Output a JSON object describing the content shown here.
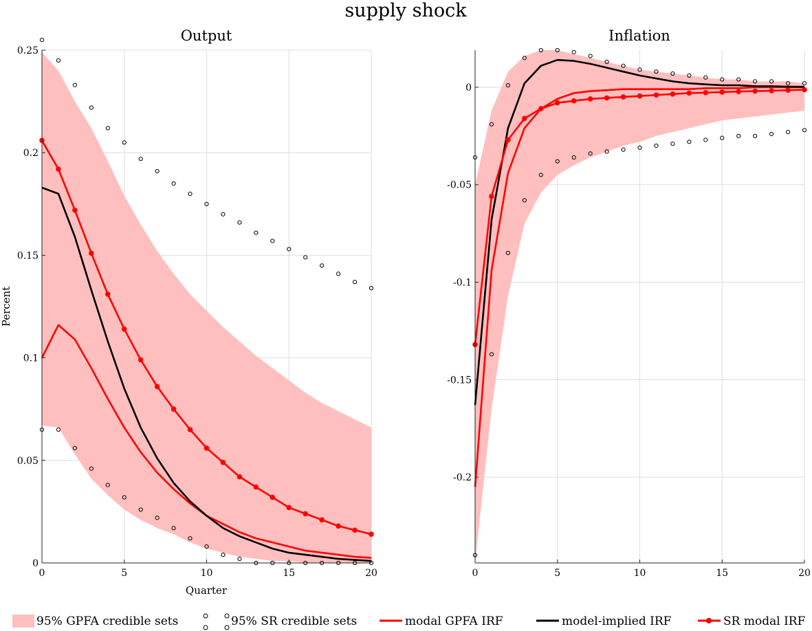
{
  "figure": {
    "title": "supply shock",
    "legend": [
      {
        "key": "band",
        "label": "95% GPFA credible sets"
      },
      {
        "key": "sr_sets",
        "label": "95% SR credible sets"
      },
      {
        "key": "modal_gpfa",
        "label": "modal GPFA IRF"
      },
      {
        "key": "model_implied",
        "label": "model-implied IRF"
      },
      {
        "key": "sr_modal",
        "label": "SR modal IRF"
      }
    ],
    "colors": {
      "band": "#ffbfbf",
      "red": "#ff0000",
      "black": "#000000",
      "grid": "#dedede"
    }
  },
  "chart_data": [
    {
      "type": "line",
      "title": "Output",
      "xlabel": "Quarter",
      "ylabel": "Percent",
      "xlim": [
        0,
        20
      ],
      "ylim": [
        0,
        0.25
      ],
      "xticks": [
        0,
        5,
        10,
        15,
        20
      ],
      "xtick_labels": [
        "0",
        "5",
        "10",
        "15",
        "20"
      ],
      "yticks": [
        0,
        0.05,
        0.1,
        0.15,
        0.2,
        0.25
      ],
      "ytick_labels": [
        "0",
        "0.05",
        "0.1",
        "0.15",
        "0.2",
        "0.25"
      ],
      "grid": true,
      "x": [
        0,
        1,
        2,
        3,
        4,
        5,
        6,
        7,
        8,
        9,
        10,
        11,
        12,
        13,
        14,
        15,
        16,
        17,
        18,
        19,
        20
      ],
      "series": [
        {
          "key": "band",
          "type": "area",
          "upper": [
            0.249,
            0.24,
            0.225,
            0.212,
            0.196,
            0.179,
            0.165,
            0.152,
            0.141,
            0.131,
            0.123,
            0.115,
            0.108,
            0.101,
            0.095,
            0.089,
            0.083,
            0.078,
            0.074,
            0.07,
            0.066
          ],
          "lower": [
            0.067,
            0.066,
            0.053,
            0.041,
            0.033,
            0.026,
            0.021,
            0.017,
            0.014,
            0.01,
            0.007,
            0.005,
            0.003,
            0.002,
            0.001,
            0.001,
            0.0,
            0.0,
            0.0,
            0.0,
            0.0
          ]
        },
        {
          "key": "sr_sets_upper",
          "type": "scatter",
          "values": [
            0.255,
            0.245,
            0.233,
            0.222,
            0.212,
            0.205,
            0.197,
            0.191,
            0.185,
            0.18,
            0.175,
            0.17,
            0.166,
            0.161,
            0.157,
            0.153,
            0.149,
            0.145,
            0.141,
            0.137,
            0.134
          ]
        },
        {
          "key": "sr_sets_lower",
          "type": "scatter",
          "values": [
            0.065,
            0.065,
            0.056,
            0.046,
            0.038,
            0.032,
            0.026,
            0.022,
            0.017,
            0.012,
            0.008,
            0.004,
            0.002,
            0.0,
            0.0,
            0.0,
            0.0,
            0.0,
            0.0,
            0.0,
            0.0
          ]
        },
        {
          "key": "modal_gpfa",
          "type": "line",
          "values": [
            0.1,
            0.116,
            0.109,
            0.095,
            0.08,
            0.066,
            0.054,
            0.044,
            0.036,
            0.029,
            0.023,
            0.019,
            0.015,
            0.012,
            0.01,
            0.008,
            0.006,
            0.005,
            0.004,
            0.003,
            0.0025
          ]
        },
        {
          "key": "model_implied",
          "type": "line",
          "values": [
            0.183,
            0.18,
            0.159,
            0.133,
            0.108,
            0.085,
            0.066,
            0.051,
            0.039,
            0.03,
            0.023,
            0.017,
            0.013,
            0.01,
            0.007,
            0.005,
            0.004,
            0.003,
            0.002,
            0.0015,
            0.001
          ]
        },
        {
          "key": "sr_modal",
          "type": "line-marker",
          "values": [
            0.206,
            0.192,
            0.172,
            0.151,
            0.131,
            0.114,
            0.099,
            0.086,
            0.075,
            0.065,
            0.056,
            0.049,
            0.042,
            0.037,
            0.032,
            0.027,
            0.024,
            0.021,
            0.018,
            0.016,
            0.014
          ]
        }
      ]
    },
    {
      "type": "line",
      "title": "Inflation",
      "xlabel": "",
      "ylabel": "",
      "xlim": [
        0,
        20
      ],
      "ylim": [
        -0.244,
        0.019
      ],
      "xticks": [
        0,
        5,
        10,
        15,
        20
      ],
      "xtick_labels": [
        "0",
        "5",
        "10",
        "15",
        "20"
      ],
      "yticks": [
        -0.2,
        -0.15,
        -0.1,
        -0.05,
        0
      ],
      "ytick_labels": [
        "-0.2",
        "-0.15",
        "-0.1",
        "-0.05",
        "0"
      ],
      "grid": true,
      "x": [
        0,
        1,
        2,
        3,
        4,
        5,
        6,
        7,
        8,
        9,
        10,
        11,
        12,
        13,
        14,
        15,
        16,
        17,
        18,
        19,
        20
      ],
      "series": [
        {
          "key": "band",
          "type": "area",
          "upper": [
            -0.05,
            -0.012,
            0.008,
            0.016,
            0.019,
            0.019,
            0.017,
            0.015,
            0.013,
            0.011,
            0.009,
            0.008,
            0.007,
            0.006,
            0.005,
            0.004,
            0.004,
            0.003,
            0.003,
            0.003,
            0.002
          ]
        },
        {
          "key": "band_lower",
          "type": "area",
          "lower": [
            -0.244,
            -0.165,
            -0.107,
            -0.07,
            -0.054,
            -0.045,
            -0.04,
            -0.036,
            -0.033,
            -0.03,
            -0.028,
            -0.025,
            -0.023,
            -0.021,
            -0.019,
            -0.017,
            -0.016,
            -0.015,
            -0.014,
            -0.013,
            -0.012
          ]
        },
        {
          "key": "sr_sets_upper",
          "type": "scatter",
          "values": [
            -0.036,
            -0.019,
            0.001,
            0.015,
            0.019,
            0.019,
            0.018,
            0.016,
            0.013,
            0.011,
            0.009,
            0.008,
            0.007,
            0.006,
            0.005,
            0.004,
            0.004,
            0.003,
            0.003,
            0.002,
            0.002
          ]
        },
        {
          "key": "sr_sets_lower",
          "type": "scatter",
          "values": [
            -0.24,
            -0.137,
            -0.085,
            -0.058,
            -0.045,
            -0.038,
            -0.036,
            -0.034,
            -0.033,
            -0.032,
            -0.031,
            -0.03,
            -0.029,
            -0.028,
            -0.027,
            -0.026,
            -0.025,
            -0.025,
            -0.024,
            -0.023,
            -0.022
          ]
        },
        {
          "key": "modal_gpfa",
          "type": "line",
          "values": [
            -0.205,
            -0.094,
            -0.044,
            -0.021,
            -0.011,
            -0.006,
            -0.003,
            -0.002,
            -0.0015,
            -0.001,
            -0.001,
            -0.001,
            -0.001,
            -0.001,
            -0.0005,
            -0.0005,
            -0.0005,
            0,
            0,
            0,
            0
          ]
        },
        {
          "key": "model_implied",
          "type": "line",
          "values": [
            -0.163,
            -0.068,
            -0.021,
            0.002,
            0.011,
            0.014,
            0.0135,
            0.012,
            0.01,
            0.008,
            0.006,
            0.0045,
            0.003,
            0.002,
            0.0015,
            0.001,
            0.001,
            0.0005,
            0.0005,
            0.0003,
            0.0002
          ]
        },
        {
          "key": "sr_modal",
          "type": "line-marker",
          "values": [
            -0.132,
            -0.056,
            -0.027,
            -0.016,
            -0.011,
            -0.008,
            -0.007,
            -0.006,
            -0.0055,
            -0.005,
            -0.0045,
            -0.004,
            -0.0035,
            -0.003,
            -0.0028,
            -0.0025,
            -0.0022,
            -0.002,
            -0.0018,
            -0.0015,
            -0.0013
          ]
        }
      ]
    }
  ]
}
